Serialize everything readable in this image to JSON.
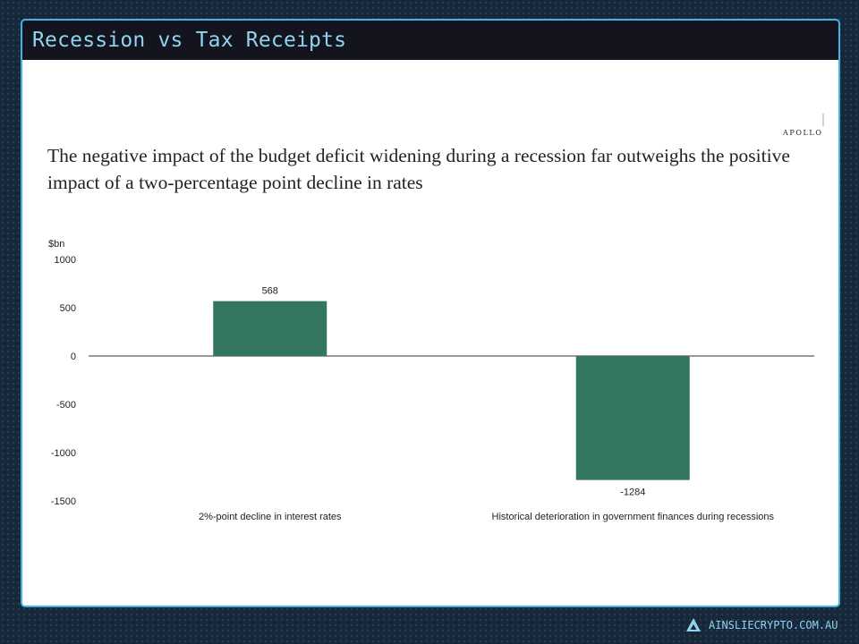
{
  "slide": {
    "title": "Recession vs Tax Receipts",
    "headline": "The negative impact of the budget deficit widening during a recession far outweighs the positive impact of a two-percentage point decline in rates",
    "source_logo": "APOLLO",
    "footer_url": "AINSLIECRYPTO.COM.AU"
  },
  "colors": {
    "accent": "#3eb6df",
    "title_text": "#8fd4f0",
    "bar": "#337763",
    "background": "#17283a"
  },
  "icons": {
    "footer_logo": "ainslie-triangle-icon"
  },
  "chart_data": {
    "type": "bar",
    "categories": [
      "2%-point decline in interest rates",
      "Historical deterioration in government finances during recessions"
    ],
    "values": [
      568,
      -1284
    ],
    "data_labels": [
      "568",
      "-1284"
    ],
    "ylabel": "$bn",
    "ylim": [
      -1500,
      1000
    ],
    "yticks": [
      1000,
      500,
      0,
      -500,
      -1000,
      -1500
    ],
    "grid": false,
    "legend": "none"
  }
}
